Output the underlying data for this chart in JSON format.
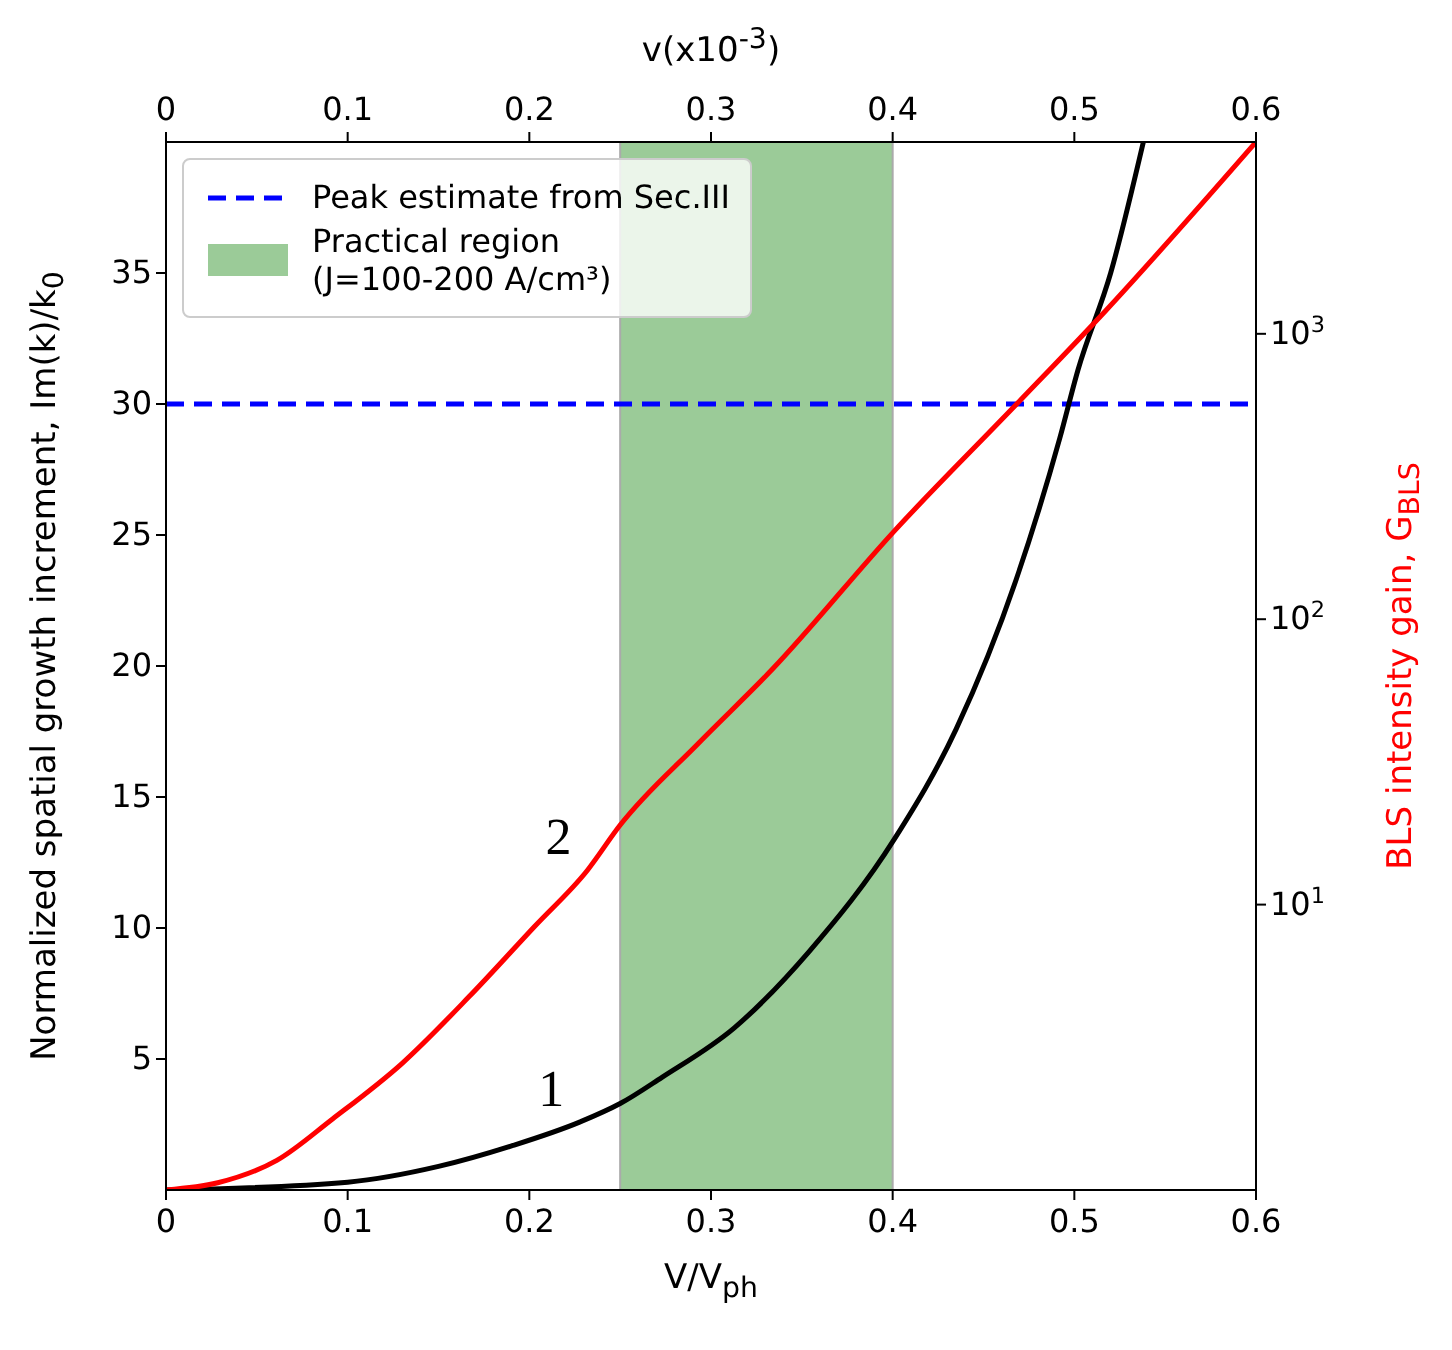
{
  "chart_data": {
    "type": "line",
    "xlabel": "V/V$_{ph}$",
    "ylabel": "Normalized spatial growth increment, Im(k)/k$_{0}$",
    "y2label": "BLS intensity gain, G$_{BLS}$",
    "x2label": "v(x10$^{-3}$)",
    "xlim": [
      0,
      0.6
    ],
    "xticks": [
      0,
      0.1,
      0.2,
      0.3,
      0.4,
      0.5,
      0.6
    ],
    "x2lim": [
      0,
      0.6
    ],
    "x2ticks": [
      0,
      0.1,
      0.2,
      0.3,
      0.4,
      0.5,
      0.6
    ],
    "ylim": [
      0,
      40
    ],
    "yticks": [
      5,
      10,
      15,
      20,
      25,
      30,
      35
    ],
    "y2lim": [
      1,
      4700
    ],
    "y2ticks": [
      {
        "value": 10,
        "label": "10$^{1}$"
      },
      {
        "value": 100,
        "label": "10$^{2}$"
      },
      {
        "value": 1000,
        "label": "10$^{3}$"
      }
    ],
    "log": "y2",
    "series": [
      {
        "color": "#000000",
        "x": [
          0,
          0.1,
          0.15,
          0.191,
          0.228,
          0.25,
          0.273,
          0.313,
          0.354,
          0.401,
          0.435,
          0.468,
          0.492,
          0.502,
          0.52,
          0.538
        ],
        "values": [
          0,
          0.3,
          0.9,
          1.7,
          2.6,
          3.3,
          4.3,
          6.2,
          9.1,
          13.4,
          17.6,
          23.3,
          28.7,
          31.3,
          35,
          40
        ]
      },
      {
        "color": "#ff0000",
        "axis": "y2",
        "x": [
          0,
          0.0285,
          0.061,
          0.0915,
          0.13,
          0.167,
          0.203,
          0.232,
          0.25,
          0.293,
          0.334,
          0.401,
          0.468,
          0.517,
          0.6
        ],
        "values": [
          1,
          1.06,
          1.27,
          1.77,
          2.78,
          4.77,
          8.4,
          13.2,
          19,
          36.7,
          67,
          204,
          565,
          1200,
          4700
        ]
      }
    ],
    "ref_lines": [
      {
        "axis": "y",
        "value": 30,
        "label": "Peak estimate from Sec.III",
        "color": "#0000ff",
        "line_style": "dashed"
      }
    ],
    "bands": [
      {
        "axis": "x",
        "from": 0.25,
        "to": 0.4,
        "label": "Practical region\n(J=100-200 A/cm³)",
        "color": "#9bcb98"
      }
    ],
    "annotations": [
      "1",
      "2"
    ],
    "marker": "none",
    "line_style": "solid",
    "grid": false,
    "legend": "top left"
  }
}
